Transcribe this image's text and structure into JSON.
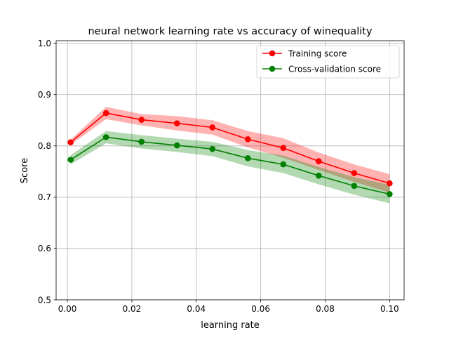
{
  "chart_data": {
    "type": "line",
    "title": "neural network learning rate vs accuracy of winequality",
    "xlabel": "learning rate",
    "ylabel": "Score",
    "xlim": [
      -0.0035,
      0.1045
    ],
    "ylim": [
      0.5,
      1.005
    ],
    "xticks": [
      0.0,
      0.02,
      0.04,
      0.06,
      0.08,
      0.1
    ],
    "xtick_labels": [
      "0.00",
      "0.02",
      "0.04",
      "0.06",
      "0.08",
      "0.10"
    ],
    "yticks": [
      0.5,
      0.6,
      0.7,
      0.8,
      0.9,
      1.0
    ],
    "ytick_labels": [
      "0.5",
      "0.6",
      "0.7",
      "0.8",
      "0.9",
      "1.0"
    ],
    "grid": true,
    "legend_position": "top-right",
    "x": [
      0.001,
      0.012,
      0.023,
      0.034,
      0.045,
      0.056,
      0.067,
      0.078,
      0.089,
      0.1
    ],
    "series": [
      {
        "name": "Training score",
        "color": "#ff0000",
        "band_color": "#ff0000",
        "values": [
          0.807,
          0.864,
          0.851,
          0.844,
          0.836,
          0.813,
          0.796,
          0.77,
          0.747,
          0.727
        ],
        "lower": [
          0.802,
          0.852,
          0.84,
          0.83,
          0.822,
          0.797,
          0.777,
          0.753,
          0.73,
          0.709
        ],
        "upper": [
          0.812,
          0.876,
          0.862,
          0.858,
          0.85,
          0.829,
          0.815,
          0.787,
          0.764,
          0.745
        ]
      },
      {
        "name": "Cross-validation score",
        "color": "#008000",
        "band_color": "#008000",
        "values": [
          0.773,
          0.817,
          0.808,
          0.801,
          0.794,
          0.776,
          0.764,
          0.742,
          0.722,
          0.706
        ],
        "lower": [
          0.764,
          0.805,
          0.795,
          0.788,
          0.78,
          0.76,
          0.747,
          0.725,
          0.705,
          0.688
        ],
        "upper": [
          0.782,
          0.829,
          0.821,
          0.814,
          0.808,
          0.792,
          0.781,
          0.759,
          0.739,
          0.724
        ]
      }
    ]
  }
}
